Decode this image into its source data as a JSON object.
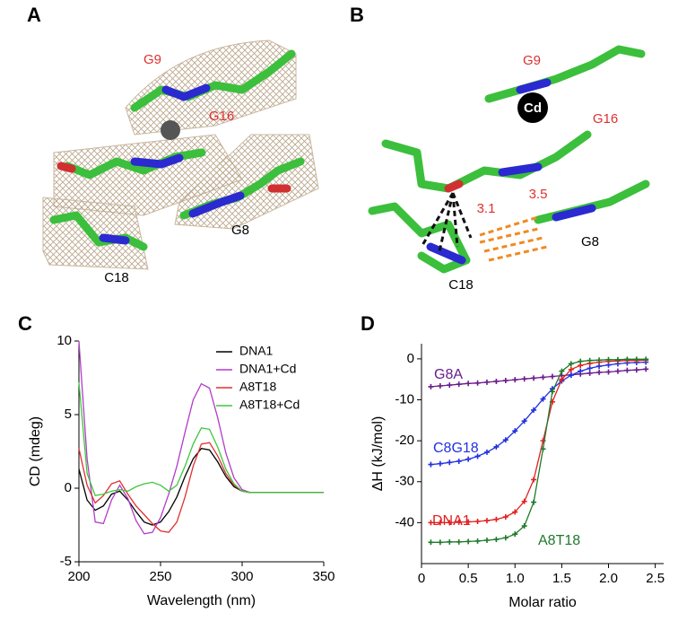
{
  "panels": {
    "a": {
      "label": "A",
      "annotations": [
        "G9",
        "G16",
        "G8",
        "C18"
      ]
    },
    "b": {
      "label": "B",
      "annotations": [
        "G9",
        "Cd",
        "G16",
        "3.1",
        "3.5",
        "G8",
        "C18"
      ]
    },
    "c": {
      "label": "C"
    },
    "d": {
      "label": "D"
    }
  },
  "chart_data": [
    {
      "type": "line",
      "xlabel": "Wavelength (nm)",
      "ylabel": "CD (mdeg)",
      "x": [
        200,
        205,
        210,
        215,
        220,
        225,
        230,
        235,
        240,
        245,
        250,
        255,
        260,
        265,
        270,
        275,
        280,
        285,
        290,
        295,
        300,
        305,
        310,
        315,
        320,
        330,
        340,
        350
      ],
      "xlim": [
        200,
        350
      ],
      "xticks": [
        200,
        250,
        300,
        350
      ],
      "ylim": [
        -5,
        10
      ],
      "yticks": [
        -5,
        0,
        5,
        10
      ],
      "legend": "upper right",
      "series": [
        {
          "name": "DNA1",
          "color": "#000000",
          "values": [
            1.3,
            -0.8,
            -1.5,
            -1.2,
            -0.4,
            -0.2,
            -0.8,
            -1.6,
            -2.3,
            -2.5,
            -2.3,
            -1.6,
            -0.6,
            0.8,
            2.0,
            2.7,
            2.6,
            1.8,
            0.8,
            0.1,
            -0.2,
            -0.3,
            -0.3,
            -0.3,
            -0.3,
            -0.3,
            -0.3,
            -0.3
          ]
        },
        {
          "name": "DNA1+Cd",
          "color": "#b23cc8",
          "values": [
            10,
            2.0,
            -2.3,
            -2.4,
            -0.8,
            0.2,
            -0.7,
            -2.2,
            -3.1,
            -3.0,
            -2.0,
            -0.4,
            1.5,
            3.8,
            6.0,
            7.1,
            6.8,
            4.8,
            2.4,
            0.7,
            -0.1,
            -0.3,
            -0.3,
            -0.3,
            -0.3,
            -0.3,
            -0.3,
            -0.3
          ]
        },
        {
          "name": "A8T18",
          "color": "#e03030",
          "values": [
            2.7,
            0.2,
            -1.0,
            -0.5,
            0.3,
            0.5,
            -0.4,
            -1.2,
            -1.8,
            -2.4,
            -2.9,
            -3.0,
            -2.3,
            -0.6,
            1.5,
            3.0,
            3.1,
            2.2,
            1.0,
            0.2,
            -0.2,
            -0.3,
            -0.3,
            -0.3,
            -0.3,
            -0.3,
            -0.3,
            -0.3
          ]
        },
        {
          "name": "A8T18+Cd",
          "color": "#3cc83c",
          "values": [
            7.2,
            1.0,
            -0.5,
            -0.4,
            -0.2,
            -0.1,
            -0.2,
            0.1,
            0.3,
            0.4,
            0.2,
            -0.2,
            0.2,
            1.5,
            3.0,
            4.1,
            4.0,
            2.8,
            1.3,
            0.3,
            -0.2,
            -0.3,
            -0.3,
            -0.3,
            -0.3,
            -0.3,
            -0.3,
            -0.3
          ]
        }
      ]
    },
    {
      "type": "line",
      "markers": true,
      "xlabel": "Molar ratio",
      "ylabel": "ΔH (kJ/mol)",
      "x": [
        0.1,
        0.2,
        0.3,
        0.4,
        0.5,
        0.6,
        0.7,
        0.8,
        0.9,
        1.0,
        1.1,
        1.2,
        1.3,
        1.4,
        1.5,
        1.6,
        1.7,
        1.8,
        1.9,
        2.0,
        2.1,
        2.2,
        2.3,
        2.4
      ],
      "xlim": [
        0,
        2.59
      ],
      "xticks": [
        0,
        0.5,
        {
          "value": 1.0,
          "label": "1.0"
        },
        1.5,
        {
          "value": 2.0,
          "label": "2.0"
        },
        2.5
      ],
      "ylim": [
        -50,
        3.7
      ],
      "yticks": [
        0,
        -10,
        -20,
        -30,
        -40
      ],
      "series": [
        {
          "name": "G8A",
          "color": "#6a1b8a",
          "values": [
            -6.8,
            -6.6,
            -6.4,
            -6.2,
            -6.0,
            -5.9,
            -5.7,
            -5.5,
            -5.3,
            -5.1,
            -4.9,
            -4.7,
            -4.5,
            -4.3,
            -4.1,
            -3.9,
            -3.7,
            -3.5,
            -3.3,
            -3.2,
            -3.0,
            -2.8,
            -2.7,
            -2.5
          ]
        },
        {
          "name": "C8G18",
          "color": "#2030e0",
          "values": [
            -25.8,
            -25.6,
            -25.3,
            -25.0,
            -24.5,
            -23.8,
            -22.8,
            -21.5,
            -19.8,
            -17.6,
            -15.2,
            -12.5,
            -9.8,
            -7.3,
            -5.4,
            -4.0,
            -3.0,
            -2.3,
            -1.8,
            -1.5,
            -1.2,
            -1.0,
            -0.9,
            -0.8
          ]
        },
        {
          "name": "DNA1",
          "color": "#e02020",
          "values": [
            -40,
            -40,
            -40,
            -39.9,
            -39.8,
            -39.7,
            -39.5,
            -39.2,
            -38.6,
            -37.4,
            -34.8,
            -29.5,
            -20,
            -10.5,
            -5,
            -2.6,
            -1.6,
            -1.1,
            -0.8,
            -0.6,
            -0.5,
            -0.4,
            -0.4,
            -0.3
          ]
        },
        {
          "name": "A8T18",
          "color": "#1e7a2a",
          "values": [
            -44.8,
            -44.8,
            -44.7,
            -44.7,
            -44.6,
            -44.5,
            -44.3,
            -44.1,
            -43.7,
            -42.8,
            -40.8,
            -35,
            -22,
            -8,
            -3,
            -1.2,
            -0.6,
            -0.4,
            -0.3,
            -0.2,
            -0.2,
            -0.1,
            -0.1,
            -0.1
          ]
        }
      ]
    }
  ]
}
